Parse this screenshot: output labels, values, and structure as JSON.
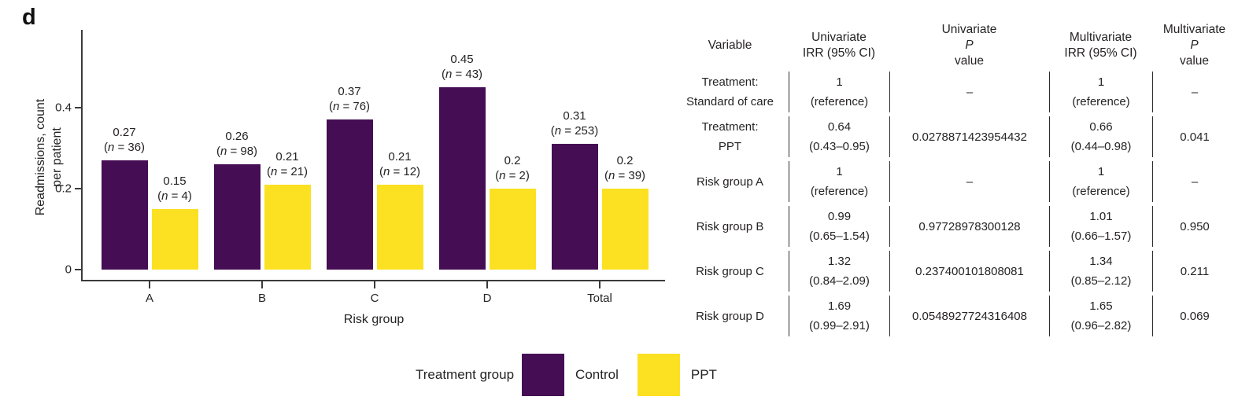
{
  "panel_label": "d",
  "colors": {
    "control": "#450D54",
    "ppt": "#FBE122",
    "axis": "#3A3A3A",
    "text": "#262323",
    "table_line": "#2B2B2B"
  },
  "chart_data": {
    "type": "bar",
    "categories": [
      "A",
      "B",
      "C",
      "D",
      "Total"
    ],
    "series": [
      {
        "name": "Control",
        "color_key": "control",
        "values": [
          0.27,
          0.26,
          0.37,
          0.45,
          0.31
        ],
        "labels": [
          "0.27",
          "0.26",
          "0.37",
          "0.45",
          "0.31"
        ],
        "n": [
          36,
          98,
          76,
          43,
          253
        ]
      },
      {
        "name": "PPT",
        "color_key": "ppt",
        "values": [
          0.15,
          0.21,
          0.21,
          0.2,
          0.2
        ],
        "labels": [
          "0.15",
          "0.21",
          "0.21",
          "0.2",
          "0.2"
        ],
        "n": [
          4,
          21,
          12,
          2,
          39
        ]
      }
    ],
    "xlabel": "Risk group",
    "ylabel_lines": [
      "Readmissions, count",
      "per patient"
    ],
    "yticks": [
      {
        "label": "0",
        "value": 0
      },
      {
        "label": "0.2",
        "value": 0.2
      },
      {
        "label": "0.4",
        "value": 0.4
      }
    ],
    "ylim": [
      0,
      0.6
    ],
    "grid": false,
    "legend_position": "bottom",
    "legend_title": "Treatment group",
    "legend": [
      {
        "label": "Control",
        "color_key": "control"
      },
      {
        "label": "PPT",
        "color_key": "ppt"
      }
    ]
  },
  "table": {
    "headers": [
      {
        "lines": [
          "Variable"
        ],
        "italic_p": false
      },
      {
        "lines": [
          "Univariate",
          "IRR (95% CI)"
        ],
        "italic_p": false
      },
      {
        "lines": [
          "Univariate",
          "P value"
        ],
        "italic_p": true
      },
      {
        "lines": [
          "Multivariate",
          "IRR (95% CI)"
        ],
        "italic_p": false
      },
      {
        "lines": [
          "Multivariate",
          "P value"
        ],
        "italic_p": true
      }
    ],
    "rows": [
      {
        "variable": [
          "Treatment:",
          "Standard of care"
        ],
        "uni_irr": [
          "1",
          "(reference)"
        ],
        "uni_p": "–",
        "multi_irr": [
          "1",
          "(reference)"
        ],
        "multi_p": "–"
      },
      {
        "variable": [
          "Treatment:",
          "PPT"
        ],
        "uni_irr": [
          "0.64",
          "(0.43–0.95)"
        ],
        "uni_p": "0.0278871423954432",
        "multi_irr": [
          "0.66",
          "(0.44–0.98)"
        ],
        "multi_p": "0.041"
      },
      {
        "variable": [
          "Risk group A"
        ],
        "uni_irr": [
          "1",
          "(reference)"
        ],
        "uni_p": "–",
        "multi_irr": [
          "1",
          "(reference)"
        ],
        "multi_p": "–"
      },
      {
        "variable": [
          "Risk group B"
        ],
        "uni_irr": [
          "0.99",
          "(0.65–1.54)"
        ],
        "uni_p": "0.97728978300128",
        "multi_irr": [
          "1.01",
          "(0.66–1.57)"
        ],
        "multi_p": "0.950"
      },
      {
        "variable": [
          "Risk group C"
        ],
        "uni_irr": [
          "1.32",
          "(0.84–2.09)"
        ],
        "uni_p": "0.237400101808081",
        "multi_irr": [
          "1.34",
          "(0.85–2.12)"
        ],
        "multi_p": "0.211"
      },
      {
        "variable": [
          "Risk group D"
        ],
        "uni_irr": [
          "1.69",
          "(0.99–2.91)"
        ],
        "uni_p": "0.0548927724316408",
        "multi_irr": [
          "1.65",
          "(0.96–2.82)"
        ],
        "multi_p": "0.069"
      }
    ]
  }
}
